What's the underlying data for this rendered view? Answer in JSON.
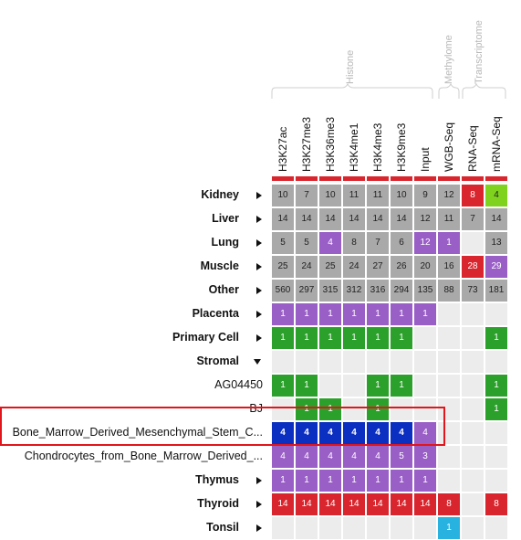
{
  "groups": [
    {
      "label": "Histone"
    },
    {
      "label": "Methylome"
    },
    {
      "label": "Transcriptome"
    }
  ],
  "columns": [
    "H3K27ac",
    "H3K27me3",
    "H3K36me3",
    "H3K4me1",
    "H3K4me3",
    "H3K9me3",
    "Input",
    "WGB-Seq",
    "RNA-Seq",
    "mRNA-Seq"
  ],
  "colors": {
    "gray": "#a9a9a9",
    "red": "#d9262e",
    "green": "#2ba02b",
    "lime": "#7fd31f",
    "purple": "#9a5fc6",
    "blue": "#0b2fc1",
    "cyan": "#27b2e0",
    "empty": "#ececec",
    "highlight": "#e0161c"
  },
  "rows": [
    {
      "label": "Kidney",
      "bold": true,
      "arrow": "right",
      "cells": [
        [
          "gray",
          "10"
        ],
        [
          "gray",
          "7"
        ],
        [
          "gray",
          "10"
        ],
        [
          "gray",
          "11"
        ],
        [
          "gray",
          "11"
        ],
        [
          "gray",
          "10"
        ],
        [
          "gray",
          "9"
        ],
        [
          "gray",
          "12"
        ],
        [
          "red",
          "8"
        ],
        [
          "lime",
          "4"
        ]
      ]
    },
    {
      "label": "Liver",
      "bold": true,
      "arrow": "right",
      "cells": [
        [
          "gray",
          "14"
        ],
        [
          "gray",
          "14"
        ],
        [
          "gray",
          "14"
        ],
        [
          "gray",
          "14"
        ],
        [
          "gray",
          "14"
        ],
        [
          "gray",
          "14"
        ],
        [
          "gray",
          "12"
        ],
        [
          "gray",
          "11"
        ],
        [
          "gray",
          "7"
        ],
        [
          "gray",
          "14"
        ]
      ]
    },
    {
      "label": "Lung",
      "bold": true,
      "arrow": "right",
      "cells": [
        [
          "gray",
          "5"
        ],
        [
          "gray",
          "5"
        ],
        [
          "purple",
          "4"
        ],
        [
          "gray",
          "8"
        ],
        [
          "gray",
          "7"
        ],
        [
          "gray",
          "6"
        ],
        [
          "purple",
          "12"
        ],
        [
          "purple",
          "1"
        ],
        [
          "empty",
          ""
        ],
        [
          "gray",
          "13"
        ]
      ]
    },
    {
      "label": "Muscle",
      "bold": true,
      "arrow": "right",
      "cells": [
        [
          "gray",
          "25"
        ],
        [
          "gray",
          "24"
        ],
        [
          "gray",
          "25"
        ],
        [
          "gray",
          "24"
        ],
        [
          "gray",
          "27"
        ],
        [
          "gray",
          "26"
        ],
        [
          "gray",
          "20"
        ],
        [
          "gray",
          "16"
        ],
        [
          "red",
          "28"
        ],
        [
          "purple",
          "29"
        ]
      ]
    },
    {
      "label": "Other",
      "bold": true,
      "arrow": "right",
      "cells": [
        [
          "gray",
          "560"
        ],
        [
          "gray",
          "297"
        ],
        [
          "gray",
          "315"
        ],
        [
          "gray",
          "312"
        ],
        [
          "gray",
          "316"
        ],
        [
          "gray",
          "294"
        ],
        [
          "gray",
          "135"
        ],
        [
          "gray",
          "88"
        ],
        [
          "gray",
          "73"
        ],
        [
          "gray",
          "181"
        ]
      ]
    },
    {
      "label": "Placenta",
      "bold": true,
      "arrow": "right",
      "cells": [
        [
          "purple",
          "1"
        ],
        [
          "purple",
          "1"
        ],
        [
          "purple",
          "1"
        ],
        [
          "purple",
          "1"
        ],
        [
          "purple",
          "1"
        ],
        [
          "purple",
          "1"
        ],
        [
          "purple",
          "1"
        ],
        [
          "empty",
          ""
        ],
        [
          "empty",
          ""
        ],
        [
          "empty",
          ""
        ]
      ]
    },
    {
      "label": "Primary Cell",
      "bold": true,
      "arrow": "right",
      "cells": [
        [
          "green",
          "1"
        ],
        [
          "green",
          "1"
        ],
        [
          "green",
          "1"
        ],
        [
          "green",
          "1"
        ],
        [
          "green",
          "1"
        ],
        [
          "green",
          "1"
        ],
        [
          "empty",
          ""
        ],
        [
          "empty",
          ""
        ],
        [
          "empty",
          ""
        ],
        [
          "green",
          "1"
        ]
      ]
    },
    {
      "label": "Stromal",
      "bold": true,
      "arrow": "down",
      "cells": [
        [
          "empty",
          ""
        ],
        [
          "empty",
          ""
        ],
        [
          "empty",
          ""
        ],
        [
          "empty",
          ""
        ],
        [
          "empty",
          ""
        ],
        [
          "empty",
          ""
        ],
        [
          "empty",
          ""
        ],
        [
          "empty",
          ""
        ],
        [
          "empty",
          ""
        ],
        [
          "empty",
          ""
        ]
      ]
    },
    {
      "label": "AG04450",
      "bold": false,
      "arrow": "",
      "cells": [
        [
          "green",
          "1"
        ],
        [
          "green",
          "1"
        ],
        [
          "empty",
          ""
        ],
        [
          "empty",
          ""
        ],
        [
          "green",
          "1"
        ],
        [
          "green",
          "1"
        ],
        [
          "empty",
          ""
        ],
        [
          "empty",
          ""
        ],
        [
          "empty",
          ""
        ],
        [
          "green",
          "1"
        ]
      ]
    },
    {
      "label": "BJ",
      "bold": false,
      "arrow": "",
      "cells": [
        [
          "empty",
          ""
        ],
        [
          "green",
          "1"
        ],
        [
          "green",
          "1"
        ],
        [
          "empty",
          ""
        ],
        [
          "green",
          "1"
        ],
        [
          "empty",
          ""
        ],
        [
          "empty",
          ""
        ],
        [
          "empty",
          ""
        ],
        [
          "empty",
          ""
        ],
        [
          "green",
          "1"
        ]
      ]
    },
    {
      "label": "Bone_Marrow_Derived_Mesenchymal_Stem_C...",
      "bold": false,
      "arrow": "",
      "cells": [
        [
          "blue",
          "4"
        ],
        [
          "blue",
          "4"
        ],
        [
          "blue",
          "4"
        ],
        [
          "blue",
          "4"
        ],
        [
          "blue",
          "4"
        ],
        [
          "blue",
          "4"
        ],
        [
          "purple",
          "4"
        ],
        [
          "empty",
          ""
        ],
        [
          "empty",
          ""
        ],
        [
          "empty",
          ""
        ]
      ]
    },
    {
      "label": "Chondrocytes_from_Bone_Marrow_Derived_...",
      "bold": false,
      "arrow": "",
      "cells": [
        [
          "purple",
          "4"
        ],
        [
          "purple",
          "4"
        ],
        [
          "purple",
          "4"
        ],
        [
          "purple",
          "4"
        ],
        [
          "purple",
          "4"
        ],
        [
          "purple",
          "5"
        ],
        [
          "purple",
          "3"
        ],
        [
          "empty",
          ""
        ],
        [
          "empty",
          ""
        ],
        [
          "empty",
          ""
        ]
      ]
    },
    {
      "label": "Thymus",
      "bold": true,
      "arrow": "right",
      "cells": [
        [
          "purple",
          "1"
        ],
        [
          "purple",
          "1"
        ],
        [
          "purple",
          "1"
        ],
        [
          "purple",
          "1"
        ],
        [
          "purple",
          "1"
        ],
        [
          "purple",
          "1"
        ],
        [
          "purple",
          "1"
        ],
        [
          "empty",
          ""
        ],
        [
          "empty",
          ""
        ],
        [
          "empty",
          ""
        ]
      ]
    },
    {
      "label": "Thyroid",
      "bold": true,
      "arrow": "right",
      "cells": [
        [
          "red",
          "14"
        ],
        [
          "red",
          "14"
        ],
        [
          "red",
          "14"
        ],
        [
          "red",
          "14"
        ],
        [
          "red",
          "14"
        ],
        [
          "red",
          "14"
        ],
        [
          "red",
          "14"
        ],
        [
          "red",
          "8"
        ],
        [
          "empty",
          ""
        ],
        [
          "red",
          "8"
        ]
      ]
    },
    {
      "label": "Tonsil",
      "bold": true,
      "arrow": "right",
      "cells": [
        [
          "empty",
          ""
        ],
        [
          "empty",
          ""
        ],
        [
          "empty",
          ""
        ],
        [
          "empty",
          ""
        ],
        [
          "empty",
          ""
        ],
        [
          "empty",
          ""
        ],
        [
          "empty",
          ""
        ],
        [
          "cyan",
          "1"
        ],
        [
          "empty",
          ""
        ],
        [
          "empty",
          ""
        ]
      ]
    }
  ]
}
